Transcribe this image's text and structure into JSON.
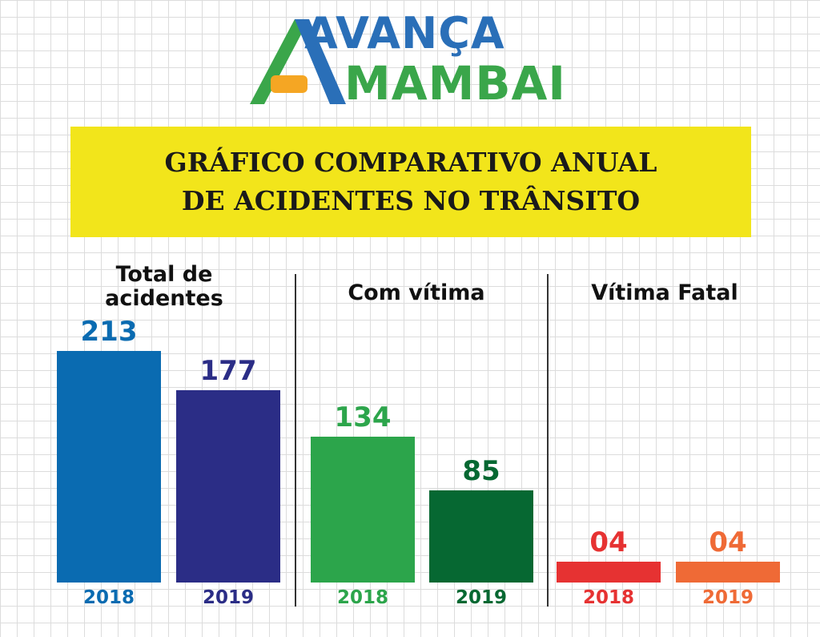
{
  "logo": {
    "line1": "AVANÇA",
    "line2": "MAMBAI"
  },
  "title": {
    "line1": "GRÁFICO COMPARATIVO ANUAL",
    "line2": "DE ACIDENTES NO TRÂNSITO"
  },
  "chart_data": [
    {
      "type": "bar",
      "title": "Total de acidentes",
      "title_lines": [
        "Total de",
        "acidentes"
      ],
      "categories": [
        "2018",
        "2019"
      ],
      "values": [
        213,
        177
      ],
      "value_labels": [
        "213",
        "177"
      ],
      "colors": [
        "#0a6bb1",
        "#2b2d86"
      ]
    },
    {
      "type": "bar",
      "title": "Com vítima",
      "title_lines": [
        "Com vítima"
      ],
      "categories": [
        "2018",
        "2019"
      ],
      "values": [
        134,
        85
      ],
      "value_labels": [
        "134",
        "85"
      ],
      "colors": [
        "#2ca54b",
        "#066832"
      ]
    },
    {
      "type": "bar",
      "title": "Vítima Fatal",
      "title_lines": [
        "Vítima Fatal"
      ],
      "categories": [
        "2018",
        "2019"
      ],
      "values": [
        4,
        4
      ],
      "value_labels": [
        "04",
        "04"
      ],
      "colors": [
        "#e63232",
        "#ef6a36"
      ]
    }
  ]
}
